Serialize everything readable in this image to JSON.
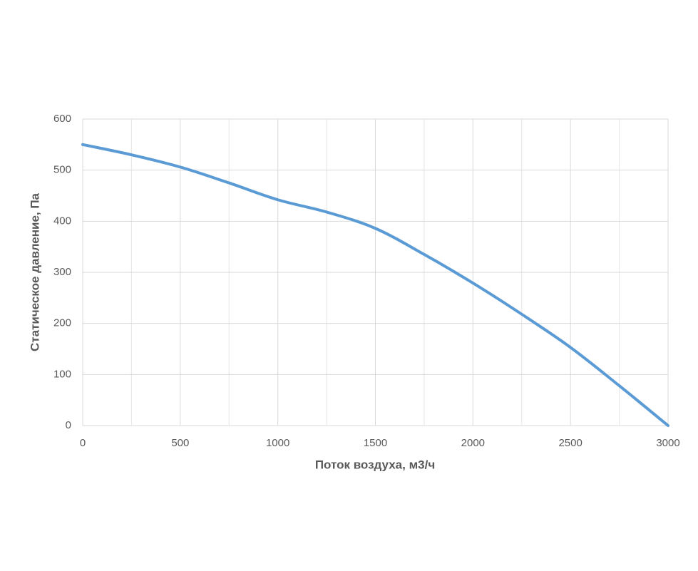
{
  "chart_data": {
    "type": "line",
    "x_label": "Поток воздуха, м3/ч",
    "y_label": "Статическое давление, Па",
    "x": [
      0,
      250,
      500,
      750,
      1000,
      1250,
      1500,
      1750,
      2000,
      2250,
      2500,
      2750,
      3000
    ],
    "series": [
      {
        "color": "#5b9bd5",
        "values": [
          550,
          530,
          506,
          475,
          442,
          418,
          386,
          335,
          279,
          218,
          153,
          78,
          0
        ]
      }
    ],
    "xlim": [
      0,
      3000
    ],
    "xticks": [
      0,
      500,
      1000,
      1500,
      2000,
      2500,
      3000
    ],
    "x_minor_gridlines": [
      250,
      750,
      1250,
      1750,
      2250,
      2750
    ],
    "ylim": [
      0,
      600
    ],
    "yticks": [
      0,
      100,
      200,
      300,
      400,
      500,
      600
    ],
    "grid": true
  }
}
